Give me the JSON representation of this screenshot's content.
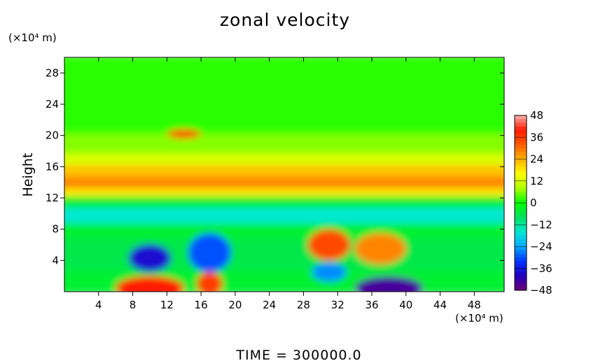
{
  "chart_data": {
    "type": "heatmap",
    "title": "zonal velocity",
    "ylabel": "Height",
    "x_unit_label": "(×10⁴ m)",
    "y_unit_label": "(×10⁴ m)",
    "xlim": [
      0,
      51.5
    ],
    "ylim": [
      0,
      30
    ],
    "xticks": [
      4,
      8,
      12,
      16,
      20,
      24,
      28,
      32,
      36,
      40,
      44,
      48
    ],
    "yticks": [
      4,
      8,
      12,
      16,
      20,
      24,
      28
    ],
    "colorbar": {
      "min": -48,
      "max": 48,
      "ticks": [
        48,
        36,
        24,
        12,
        0,
        -12,
        -24,
        -36,
        -48
      ],
      "tick_labels": [
        "48",
        "36",
        "24",
        "12",
        "0",
        "−12",
        "−24",
        "−36",
        "−48"
      ],
      "colors": [
        "#6a0078",
        "#2200c0",
        "#0033ff",
        "#00aaff",
        "#00e8d0",
        "#00e060",
        "#00ff00",
        "#b0ff00",
        "#ffff00",
        "#ffb000",
        "#ff5a00",
        "#ff1a00",
        "#ffb0b0"
      ]
    },
    "bands": [
      {
        "y0": 0,
        "y1": 3,
        "value": -4
      },
      {
        "y0": 3,
        "y1": 7,
        "value": -6
      },
      {
        "y0": 7,
        "y1": 9,
        "value": -4
      },
      {
        "y0": 9,
        "y1": 11,
        "value": -16
      },
      {
        "y0": 11,
        "y1": 12.5,
        "value": -4
      },
      {
        "y0": 12.5,
        "y1": 13.5,
        "value": 18
      },
      {
        "y0": 13.5,
        "y1": 15,
        "value": 28
      },
      {
        "y0": 15,
        "y1": 16.5,
        "value": 22
      },
      {
        "y0": 16.5,
        "y1": 18,
        "value": 12
      },
      {
        "y0": 18,
        "y1": 20.5,
        "value": 6
      },
      {
        "y0": 20.5,
        "y1": 30,
        "value": 2
      }
    ],
    "features": [
      {
        "x": 10,
        "y": 4.3,
        "rx": 2.5,
        "ry": 1.8,
        "value": -38
      },
      {
        "x": 17,
        "y": 5,
        "rx": 2.5,
        "ry": 2.5,
        "value": -30
      },
      {
        "x": 10,
        "y": 0.5,
        "rx": 4,
        "ry": 1.5,
        "value": 40
      },
      {
        "x": 17,
        "y": 1,
        "rx": 1.5,
        "ry": 1.5,
        "value": 36
      },
      {
        "x": 31,
        "y": 6,
        "rx": 2.5,
        "ry": 2,
        "value": 34
      },
      {
        "x": 37,
        "y": 5.5,
        "rx": 3,
        "ry": 2,
        "value": 28
      },
      {
        "x": 31,
        "y": 2.5,
        "rx": 2,
        "ry": 1.2,
        "value": -26
      },
      {
        "x": 38,
        "y": 0.5,
        "rx": 4,
        "ry": 1.5,
        "value": -44
      },
      {
        "x": 14,
        "y": 20.2,
        "rx": 2,
        "ry": 0.6,
        "value": 34
      }
    ],
    "time_label": "TIME = 300000.0"
  }
}
